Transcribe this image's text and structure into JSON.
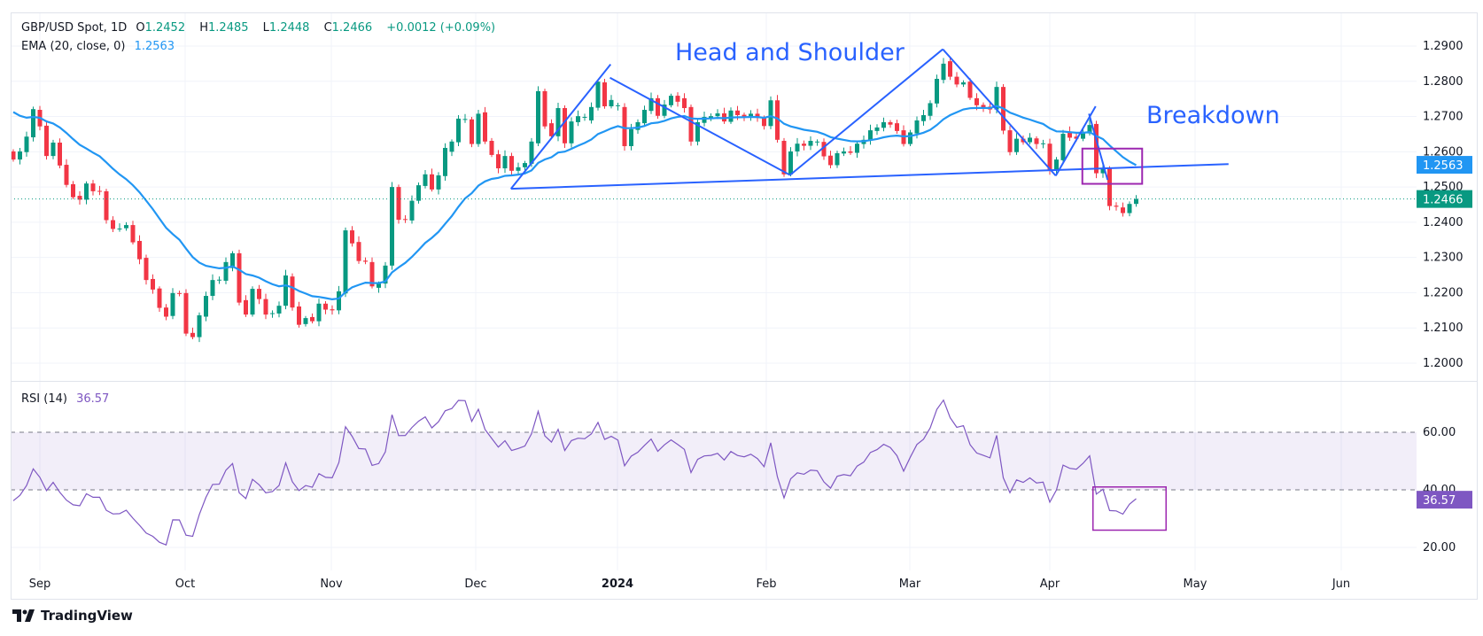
{
  "header": {
    "symbol": "GBP/USD Spot, 1D",
    "open_label": "O",
    "open": "1.2452",
    "high_label": "H",
    "high": "1.2485",
    "low_label": "L",
    "low": "1.2448",
    "close_label": "C",
    "close": "1.2466",
    "change": "+0.0012 (+0.09%)",
    "ema_label": "EMA (20, close, 0)",
    "ema_value": "1.2563",
    "rsi_label": "RSI (14)",
    "rsi_value": "36.57"
  },
  "annotations": {
    "pattern_label": "Head and Shoulder",
    "breakdown_label": "Breakdown"
  },
  "footer": {
    "brand": "TradingView"
  },
  "colors": {
    "up": "#089981",
    "down": "#f23645",
    "ema": "#2196f3",
    "trend": "#2962ff",
    "box": "#9c27b0",
    "rsi": "#7e57c2"
  },
  "chart_data": [
    {
      "type": "candlestick",
      "title": "GBP/USD Spot, 1D",
      "ylim": [
        1.1985,
        1.2935
      ],
      "y_ticks": [
        "1.2000",
        "1.2100",
        "1.2200",
        "1.2300",
        "1.2400",
        "1.2500",
        "1.2600",
        "1.2700",
        "1.2800",
        "1.2900"
      ],
      "x_ticks": [
        "Sep",
        "Oct",
        "Nov",
        "Dec",
        "2024",
        "Feb",
        "Mar",
        "Apr",
        "May",
        "Jun"
      ],
      "last_price_label": "1.2466",
      "ema_price_label": "1.2563",
      "ema_period": 20,
      "oc": [
        [
          1.2601,
          1.2578
        ],
        [
          1.2578,
          1.2601
        ],
        [
          1.2599,
          1.2643
        ],
        [
          1.2641,
          1.2721
        ],
        [
          1.2719,
          1.2672
        ],
        [
          1.2674,
          1.2588
        ],
        [
          1.2588,
          1.2626
        ],
        [
          1.2626,
          1.2561
        ],
        [
          1.2563,
          1.2506
        ],
        [
          1.2508,
          1.2471
        ],
        [
          1.2475,
          1.2464
        ],
        [
          1.2464,
          1.251
        ],
        [
          1.251,
          1.2488
        ],
        [
          1.2489,
          1.2488
        ],
        [
          1.2488,
          1.2406
        ],
        [
          1.2406,
          1.2381
        ],
        [
          1.2381,
          1.2382
        ],
        [
          1.2383,
          1.2392
        ],
        [
          1.2392,
          1.2343
        ],
        [
          1.2347,
          1.2295
        ],
        [
          1.2299,
          1.2236
        ],
        [
          1.2239,
          1.2209
        ],
        [
          1.2212,
          1.2157
        ],
        [
          1.2158,
          1.2132
        ],
        [
          1.2134,
          1.2199
        ],
        [
          1.2199,
          1.2198
        ],
        [
          1.2199,
          1.2084
        ],
        [
          1.2086,
          1.2074
        ],
        [
          1.2074,
          1.2136
        ],
        [
          1.2132,
          1.2191
        ],
        [
          1.2191,
          1.2236
        ],
        [
          1.2236,
          1.2237
        ],
        [
          1.2234,
          1.2287
        ],
        [
          1.227,
          1.2312
        ],
        [
          1.2312,
          1.2172
        ],
        [
          1.2179,
          1.2138
        ],
        [
          1.2138,
          1.2211
        ],
        [
          1.2211,
          1.2182
        ],
        [
          1.2182,
          1.2138
        ],
        [
          1.2141,
          1.2142
        ],
        [
          1.2141,
          1.2163
        ],
        [
          1.2163,
          1.2249
        ],
        [
          1.2246,
          1.2158
        ],
        [
          1.2161,
          1.2109
        ],
        [
          1.2111,
          1.2128
        ],
        [
          1.2131,
          1.2119
        ],
        [
          1.2119,
          1.2169
        ],
        [
          1.2169,
          1.2152
        ],
        [
          1.2153,
          1.215
        ],
        [
          1.215,
          1.2204
        ],
        [
          1.2198,
          1.2377
        ],
        [
          1.2377,
          1.234
        ],
        [
          1.2344,
          1.229
        ],
        [
          1.2291,
          1.2288
        ],
        [
          1.2287,
          1.2218
        ],
        [
          1.2214,
          1.2226
        ],
        [
          1.2226,
          1.2277
        ],
        [
          1.2277,
          1.25
        ],
        [
          1.25,
          1.2407
        ],
        [
          1.2409,
          1.2408
        ],
        [
          1.2405,
          1.2461
        ],
        [
          1.2461,
          1.2505
        ],
        [
          1.2503,
          1.2536
        ],
        [
          1.2536,
          1.2493
        ],
        [
          1.2493,
          1.2533
        ],
        [
          1.2531,
          1.2611
        ],
        [
          1.26,
          1.2629
        ],
        [
          1.2627,
          1.2694
        ],
        [
          1.2692,
          1.2693
        ],
        [
          1.2692,
          1.2622
        ],
        [
          1.2622,
          1.2708
        ],
        [
          1.2712,
          1.2629
        ],
        [
          1.2631,
          1.2591
        ],
        [
          1.2593,
          1.2553
        ],
        [
          1.2553,
          1.2588
        ],
        [
          1.2588,
          1.2546
        ],
        [
          1.2546,
          1.2556
        ],
        [
          1.2556,
          1.2568
        ],
        [
          1.2566,
          1.2629
        ],
        [
          1.2624,
          1.2772
        ],
        [
          1.2772,
          1.2672
        ],
        [
          1.2681,
          1.2644
        ],
        [
          1.2644,
          1.2724
        ],
        [
          1.2724,
          1.2624
        ],
        [
          1.2624,
          1.2686
        ],
        [
          1.2684,
          1.2701
        ],
        [
          1.2698,
          1.2699
        ],
        [
          1.2689,
          1.2727
        ],
        [
          1.2725,
          1.2799
        ],
        [
          1.2797,
          1.2729
        ],
        [
          1.2729,
          1.2747
        ],
        [
          1.2731,
          1.2732
        ],
        [
          1.2727,
          1.2616
        ],
        [
          1.2616,
          1.2664
        ],
        [
          1.2662,
          1.2684
        ],
        [
          1.2681,
          1.2719
        ],
        [
          1.2716,
          1.2752
        ],
        [
          1.2752,
          1.2702
        ],
        [
          1.2702,
          1.2734
        ],
        [
          1.2732,
          1.2759
        ],
        [
          1.2759,
          1.2742
        ],
        [
          1.2752,
          1.2724
        ],
        [
          1.2727,
          1.2629
        ],
        [
          1.2629,
          1.2684
        ],
        [
          1.2682,
          1.2699
        ],
        [
          1.2696,
          1.2701
        ],
        [
          1.2701,
          1.2709
        ],
        [
          1.2709,
          1.2686
        ],
        [
          1.2685,
          1.2717
        ],
        [
          1.2717,
          1.2704
        ],
        [
          1.2705,
          1.27
        ],
        [
          1.27,
          1.2708
        ],
        [
          1.2708,
          1.2696
        ],
        [
          1.2696,
          1.2673
        ],
        [
          1.2673,
          1.2746
        ],
        [
          1.2746,
          1.2634
        ],
        [
          1.2631,
          1.2536
        ],
        [
          1.2536,
          1.2601
        ],
        [
          1.2601,
          1.2623
        ],
        [
          1.2623,
          1.2617
        ],
        [
          1.2617,
          1.2631
        ],
        [
          1.2628,
          1.2629
        ],
        [
          1.2628,
          1.2587
        ],
        [
          1.2589,
          1.2562
        ],
        [
          1.2562,
          1.2596
        ],
        [
          1.2595,
          1.2601
        ],
        [
          1.2601,
          1.2597
        ],
        [
          1.2597,
          1.2623
        ],
        [
          1.2622,
          1.2634
        ],
        [
          1.2632,
          1.2661
        ],
        [
          1.2659,
          1.2669
        ],
        [
          1.2668,
          1.2684
        ],
        [
          1.2684,
          1.2677
        ],
        [
          1.2681,
          1.2659
        ],
        [
          1.2661,
          1.2622
        ],
        [
          1.2622,
          1.2655
        ],
        [
          1.2652,
          1.2689
        ],
        [
          1.2687,
          1.2704
        ],
        [
          1.2702,
          1.2738
        ],
        [
          1.2737,
          1.2807
        ],
        [
          1.2804,
          1.285
        ],
        [
          1.2857,
          1.2813
        ],
        [
          1.2813,
          1.2791
        ],
        [
          1.2791,
          1.2797
        ],
        [
          1.2799,
          1.2753
        ],
        [
          1.2752,
          1.2732
        ],
        [
          1.2733,
          1.2726
        ],
        [
          1.2728,
          1.272
        ],
        [
          1.272,
          1.2784
        ],
        [
          1.2784,
          1.266
        ],
        [
          1.2661,
          1.2599
        ],
        [
          1.2599,
          1.2637
        ],
        [
          1.2637,
          1.2627
        ],
        [
          1.2627,
          1.264
        ],
        [
          1.2638,
          1.2622
        ],
        [
          1.2623,
          1.2624
        ],
        [
          1.2623,
          1.2547
        ],
        [
          1.2547,
          1.2578
        ],
        [
          1.2576,
          1.2651
        ],
        [
          1.2657,
          1.264
        ],
        [
          1.2643,
          1.2637
        ],
        [
          1.2637,
          1.2654
        ],
        [
          1.2652,
          1.2676
        ],
        [
          1.2679,
          1.2539
        ],
        [
          1.2539,
          1.2553
        ],
        [
          1.2553,
          1.2446
        ],
        [
          1.2447,
          1.2444
        ],
        [
          1.2442,
          1.2426
        ],
        [
          1.2426,
          1.2452
        ],
        [
          1.2452,
          1.2466
        ]
      ],
      "trendlines": [
        {
          "name": "neckline",
          "from": [
            74.9,
            1.2495
          ],
          "to": [
            182.9,
            1.2565
          ]
        },
        {
          "name": "left-shoulder-up",
          "from": [
            74.9,
            1.2495
          ],
          "to": [
            89.9,
            1.2848
          ]
        },
        {
          "name": "left-shoulder-down",
          "from": [
            89.8,
            1.281
          ],
          "to": [
            116.9,
            1.2534
          ]
        },
        {
          "name": "head-up",
          "from": [
            116.9,
            1.2534
          ],
          "to": [
            139.9,
            1.2891
          ]
        },
        {
          "name": "head-down",
          "from": [
            139.9,
            1.2891
          ],
          "to": [
            156.9,
            1.2532
          ]
        },
        {
          "name": "right-shoulder-up",
          "from": [
            156.9,
            1.2532
          ],
          "to": [
            162.9,
            1.2729
          ]
        },
        {
          "name": "right-shoulder-down",
          "from": [
            161.9,
            1.2708
          ],
          "to": [
            164.7,
            1.252
          ]
        }
      ],
      "breakdown_box": {
        "from": [
          160.9,
          1.2609
        ],
        "to": [
          169.9,
          1.2509
        ]
      }
    },
    {
      "type": "line",
      "title": "RSI (14)",
      "ylim": [
        13,
        80
      ],
      "y_ticks": [
        "20.00",
        "40.00",
        "60.00"
      ],
      "band": [
        40,
        60
      ],
      "last_value_label": "36.57",
      "highlight_box": {
        "from": [
          162.5,
          41
        ],
        "to": [
          173.5,
          26
        ]
      }
    }
  ]
}
